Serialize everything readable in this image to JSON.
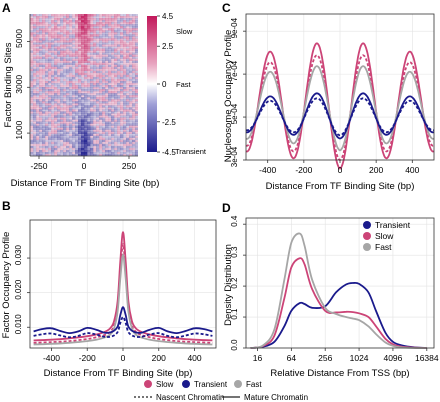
{
  "colors": {
    "slow": "#cc4477",
    "transient": "#1a1a8c",
    "fast": "#a6a6a6",
    "heat_high": "#c2185b",
    "heat_mid": "#ffffff",
    "heat_low": "#1a1a8c"
  },
  "chart_data": [
    {
      "panel": "A",
      "type": "heatmap",
      "xlabel": "Distance From TF Binding Site (bp)",
      "ylabel": "Factor Binding Sites",
      "x_ticks": [
        "-250",
        "0",
        "250"
      ],
      "y_ticks": [
        "1000",
        "3000",
        "5000"
      ],
      "xlim": [
        -300,
        300
      ],
      "ylim": [
        0,
        6200
      ],
      "colorbar": {
        "ticks": [
          "4.5",
          "2.5",
          "0",
          "-2.5",
          "-4.5"
        ],
        "labels": [
          "Slow",
          "Fast",
          "Transient"
        ],
        "range": [
          -4.5,
          4.5
        ]
      }
    },
    {
      "panel": "B",
      "type": "line",
      "xlabel": "Distance From TF Binding Site (bp)",
      "ylabel": "Factor Occupancy Profile",
      "x_ticks": [
        "-400",
        "-200",
        "0",
        "200",
        "400"
      ],
      "y_ticks": [
        "0.010",
        "0.020",
        "0.030"
      ],
      "xlim": [
        -520,
        520
      ],
      "ylim": [
        0.004,
        0.041
      ],
      "grid": true,
      "series": [
        {
          "name": "Slow",
          "chromatin": "Mature Chromatin",
          "x": [
            -500,
            -400,
            -300,
            -200,
            -150,
            -100,
            -70,
            -50,
            -30,
            -15,
            0,
            15,
            30,
            50,
            70,
            100,
            150,
            200,
            300,
            400,
            500
          ],
          "y": [
            0.0062,
            0.0064,
            0.0068,
            0.0074,
            0.0079,
            0.0087,
            0.0098,
            0.0118,
            0.0175,
            0.029,
            0.0375,
            0.029,
            0.0175,
            0.0118,
            0.0098,
            0.0087,
            0.0079,
            0.0074,
            0.0068,
            0.0064,
            0.0062
          ]
        },
        {
          "name": "Slow",
          "chromatin": "Nascent Chromatin",
          "x": [
            -500,
            -400,
            -300,
            -200,
            -150,
            -100,
            -70,
            -50,
            -30,
            -15,
            0,
            15,
            30,
            50,
            70,
            100,
            150,
            200,
            300,
            400,
            500
          ],
          "y": [
            0.0055,
            0.0057,
            0.006,
            0.0066,
            0.0071,
            0.0078,
            0.0088,
            0.0105,
            0.0155,
            0.026,
            0.034,
            0.026,
            0.0155,
            0.0105,
            0.0088,
            0.0078,
            0.0071,
            0.0066,
            0.006,
            0.0057,
            0.0055
          ]
        },
        {
          "name": "Fast",
          "chromatin": "Mature Chromatin",
          "x": [
            -500,
            -400,
            -300,
            -200,
            -150,
            -100,
            -70,
            -50,
            -30,
            -15,
            0,
            15,
            30,
            50,
            70,
            100,
            150,
            200,
            300,
            400,
            500
          ],
          "y": [
            0.005,
            0.0052,
            0.0055,
            0.006,
            0.0064,
            0.0071,
            0.008,
            0.0097,
            0.0145,
            0.024,
            0.031,
            0.024,
            0.0145,
            0.0097,
            0.008,
            0.0071,
            0.0064,
            0.006,
            0.0055,
            0.0052,
            0.005
          ]
        },
        {
          "name": "Transient",
          "chromatin": "Mature Chromatin",
          "x": [
            -500,
            -450,
            -400,
            -350,
            -300,
            -250,
            -200,
            -150,
            -100,
            -60,
            -30,
            -15,
            0,
            15,
            30,
            60,
            100,
            150,
            200,
            250,
            300,
            350,
            400,
            450,
            500
          ],
          "y": [
            0.0088,
            0.0095,
            0.0097,
            0.0089,
            0.0083,
            0.0088,
            0.0098,
            0.0093,
            0.0084,
            0.0087,
            0.0102,
            0.0135,
            0.0158,
            0.0135,
            0.0102,
            0.0087,
            0.0084,
            0.0093,
            0.0098,
            0.0088,
            0.0083,
            0.0089,
            0.0097,
            0.0095,
            0.0088
          ]
        },
        {
          "name": "Transient",
          "chromatin": "Nascent Chromatin",
          "x": [
            -500,
            -450,
            -400,
            -350,
            -300,
            -250,
            -200,
            -150,
            -100,
            -60,
            -30,
            -15,
            0,
            15,
            30,
            60,
            100,
            150,
            200,
            250,
            300,
            350,
            400,
            450,
            500
          ],
          "y": [
            0.0075,
            0.008,
            0.0082,
            0.0076,
            0.0071,
            0.0075,
            0.0083,
            0.0079,
            0.0072,
            0.0074,
            0.0086,
            0.0112,
            0.013,
            0.0112,
            0.0086,
            0.0074,
            0.0072,
            0.0079,
            0.0083,
            0.0075,
            0.0071,
            0.0076,
            0.0082,
            0.008,
            0.0075
          ]
        }
      ]
    },
    {
      "panel": "C",
      "type": "line",
      "xlabel": "Distance From TF Binding Site (bp)",
      "ylabel": "Nucleosome Occupancy Profile",
      "x_ticks": [
        "-400",
        "-200",
        "0",
        "200",
        "400"
      ],
      "y_ticks": [
        "3e-04",
        "5e-04",
        "7e-04",
        "9e-04"
      ],
      "xlim": [
        -520,
        520
      ],
      "ylim": [
        0.0003,
        0.00098
      ],
      "grid": true,
      "series": [
        {
          "name": "Slow",
          "chromatin": "Mature Chromatin",
          "mean": 0.000565,
          "amp": 0.000305,
          "period": 258,
          "phase": 129
        },
        {
          "name": "Slow",
          "chromatin": "Nascent Chromatin",
          "mean": 0.000555,
          "amp": 0.000255,
          "period": 258,
          "phase": 129
        },
        {
          "name": "Fast",
          "chromatin": "Mature Chromatin",
          "mean": 0.00055,
          "amp": 0.000205,
          "period": 258,
          "phase": 129
        },
        {
          "name": "Transient",
          "chromatin": "Mature Chromatin",
          "mean": 0.00051,
          "amp": 0.00011,
          "period": 258,
          "phase": 129
        },
        {
          "name": "Transient",
          "chromatin": "Nascent Chromatin",
          "mean": 0.000505,
          "amp": 9e-05,
          "period": 258,
          "phase": 129
        }
      ]
    },
    {
      "panel": "D",
      "type": "line",
      "xlabel": "Relative Distance From TSS (bp)",
      "ylabel": "Density Distribution",
      "x_ticks": [
        "16",
        "64",
        "256",
        "1024",
        "4096",
        "16384"
      ],
      "x_scale": "log2",
      "y_ticks": [
        "0.0",
        "0.1",
        "0.2",
        "0.3",
        "0.4"
      ],
      "xlim": [
        10,
        22000
      ],
      "ylim": [
        0,
        0.42
      ],
      "grid": true,
      "legend": [
        "Transient",
        "Slow",
        "Fast"
      ],
      "legend_position": "top-right",
      "series": [
        {
          "name": "Transient",
          "x": [
            12,
            20,
            32,
            48,
            64,
            90,
            110,
            150,
            256,
            400,
            600,
            800,
            1024,
            1500,
            2048,
            3000,
            4096,
            6000,
            10000,
            16384
          ],
          "y": [
            0.0,
            0.004,
            0.02,
            0.07,
            0.12,
            0.145,
            0.142,
            0.13,
            0.135,
            0.18,
            0.205,
            0.21,
            0.207,
            0.18,
            0.12,
            0.05,
            0.02,
            0.008,
            0.002,
            0.0
          ]
        },
        {
          "name": "Slow",
          "x": [
            12,
            20,
            32,
            48,
            64,
            90,
            110,
            150,
            256,
            400,
            600,
            800,
            1024,
            1500,
            2048,
            3000,
            4096,
            6000,
            10000,
            16384
          ],
          "y": [
            0.0,
            0.006,
            0.04,
            0.16,
            0.26,
            0.29,
            0.27,
            0.19,
            0.12,
            0.115,
            0.117,
            0.116,
            0.112,
            0.1,
            0.07,
            0.03,
            0.012,
            0.004,
            0.001,
            0.0
          ]
        },
        {
          "name": "Fast",
          "x": [
            12,
            20,
            32,
            48,
            64,
            90,
            110,
            150,
            256,
            400,
            600,
            800,
            1024,
            1500,
            2048,
            3000,
            4096,
            6000,
            10000,
            16384
          ],
          "y": [
            0.0,
            0.008,
            0.06,
            0.22,
            0.34,
            0.37,
            0.33,
            0.22,
            0.13,
            0.11,
            0.1,
            0.095,
            0.09,
            0.07,
            0.045,
            0.018,
            0.007,
            0.002,
            0.0,
            0.0
          ]
        }
      ]
    }
  ],
  "panel_labels": [
    "A",
    "B",
    "C",
    "D"
  ],
  "legend_bottom": {
    "classes": [
      "Slow",
      "Transient",
      "Fast"
    ],
    "line_types": [
      "Nascent Chromatin",
      "Mature Chromatin"
    ]
  }
}
